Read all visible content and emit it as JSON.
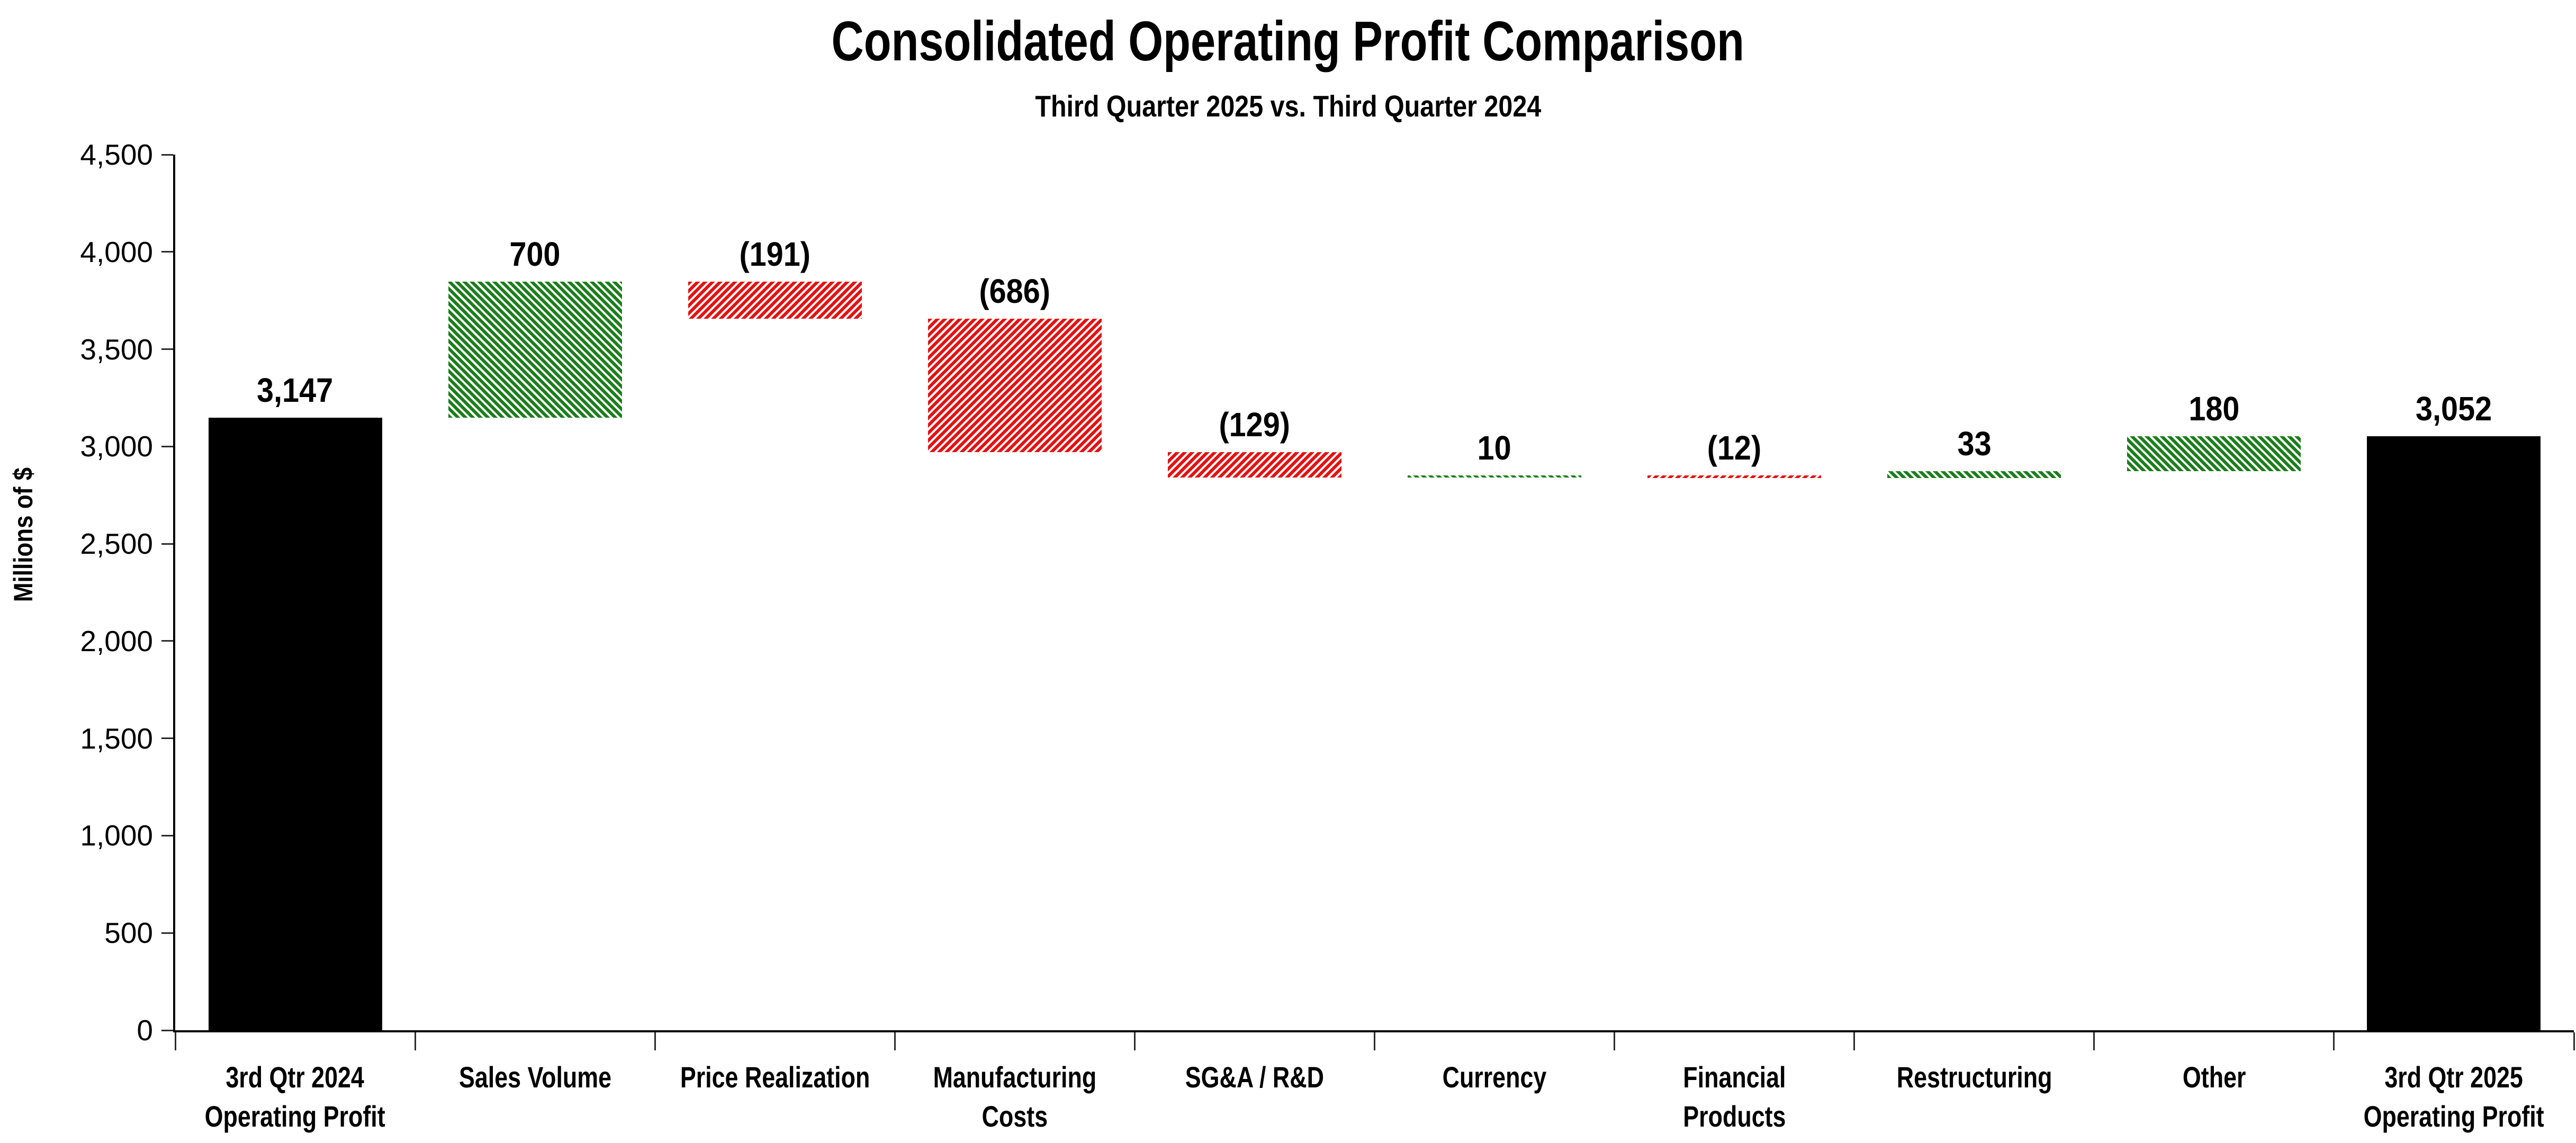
{
  "chart_data": {
    "type": "bar",
    "subtype": "waterfall",
    "title": "Consolidated Operating Profit Comparison",
    "subtitle": "Third Quarter 2025 vs. Third Quarter 2024",
    "ylabel": "Millions of $",
    "xlabel": "",
    "ylim": [
      0,
      4500
    ],
    "ytick_step": 500,
    "ytick_labels": [
      "0",
      "500",
      "1,000",
      "1,500",
      "2,000",
      "2,500",
      "3,000",
      "3,500",
      "4,000",
      "4,500"
    ],
    "grid": false,
    "legend": "none",
    "colors": {
      "beginning_ending_bar": "#000000",
      "favorable_bar": "#1b7e1b",
      "unfavorable_bar": "#e41212",
      "background": "#ffffff",
      "text": "#000000"
    },
    "hatch": {
      "beginning_ending_bar": "solid",
      "favorable_bar": "forward-diagonal-stripes",
      "unfavorable_bar": "backward-diagonal-stripes"
    },
    "categories": [
      {
        "name": "3rd-qtr-2024-operating-profit",
        "lines": [
          "3rd Qtr 2024",
          "Operating Profit"
        ],
        "kind": "total",
        "value": 3147,
        "label": "3,147"
      },
      {
        "name": "sales-volume",
        "lines": [
          "Sales Volume"
        ],
        "kind": "delta",
        "value": 700,
        "label": "700"
      },
      {
        "name": "price-realization",
        "lines": [
          "Price Realization"
        ],
        "kind": "delta",
        "value": -191,
        "label": "(191)"
      },
      {
        "name": "manufacturing-costs",
        "lines": [
          "Manufacturing",
          "Costs"
        ],
        "kind": "delta",
        "value": -686,
        "label": "(686)"
      },
      {
        "name": "sga-rd",
        "lines": [
          "SG&A / R&D"
        ],
        "kind": "delta",
        "value": -129,
        "label": "(129)"
      },
      {
        "name": "currency",
        "lines": [
          "Currency"
        ],
        "kind": "delta",
        "value": 10,
        "label": "10"
      },
      {
        "name": "financial-products",
        "lines": [
          "Financial",
          "Products"
        ],
        "kind": "delta",
        "value": -12,
        "label": "(12)"
      },
      {
        "name": "restructuring",
        "lines": [
          "Restructuring"
        ],
        "kind": "delta",
        "value": 33,
        "label": "33"
      },
      {
        "name": "other",
        "lines": [
          "Other"
        ],
        "kind": "delta",
        "value": 180,
        "label": "180"
      },
      {
        "name": "3rd-qtr-2025-operating-profit",
        "lines": [
          "3rd Qtr 2025",
          "Operating Profit"
        ],
        "kind": "total",
        "value": 3052,
        "label": "3,052"
      }
    ]
  }
}
